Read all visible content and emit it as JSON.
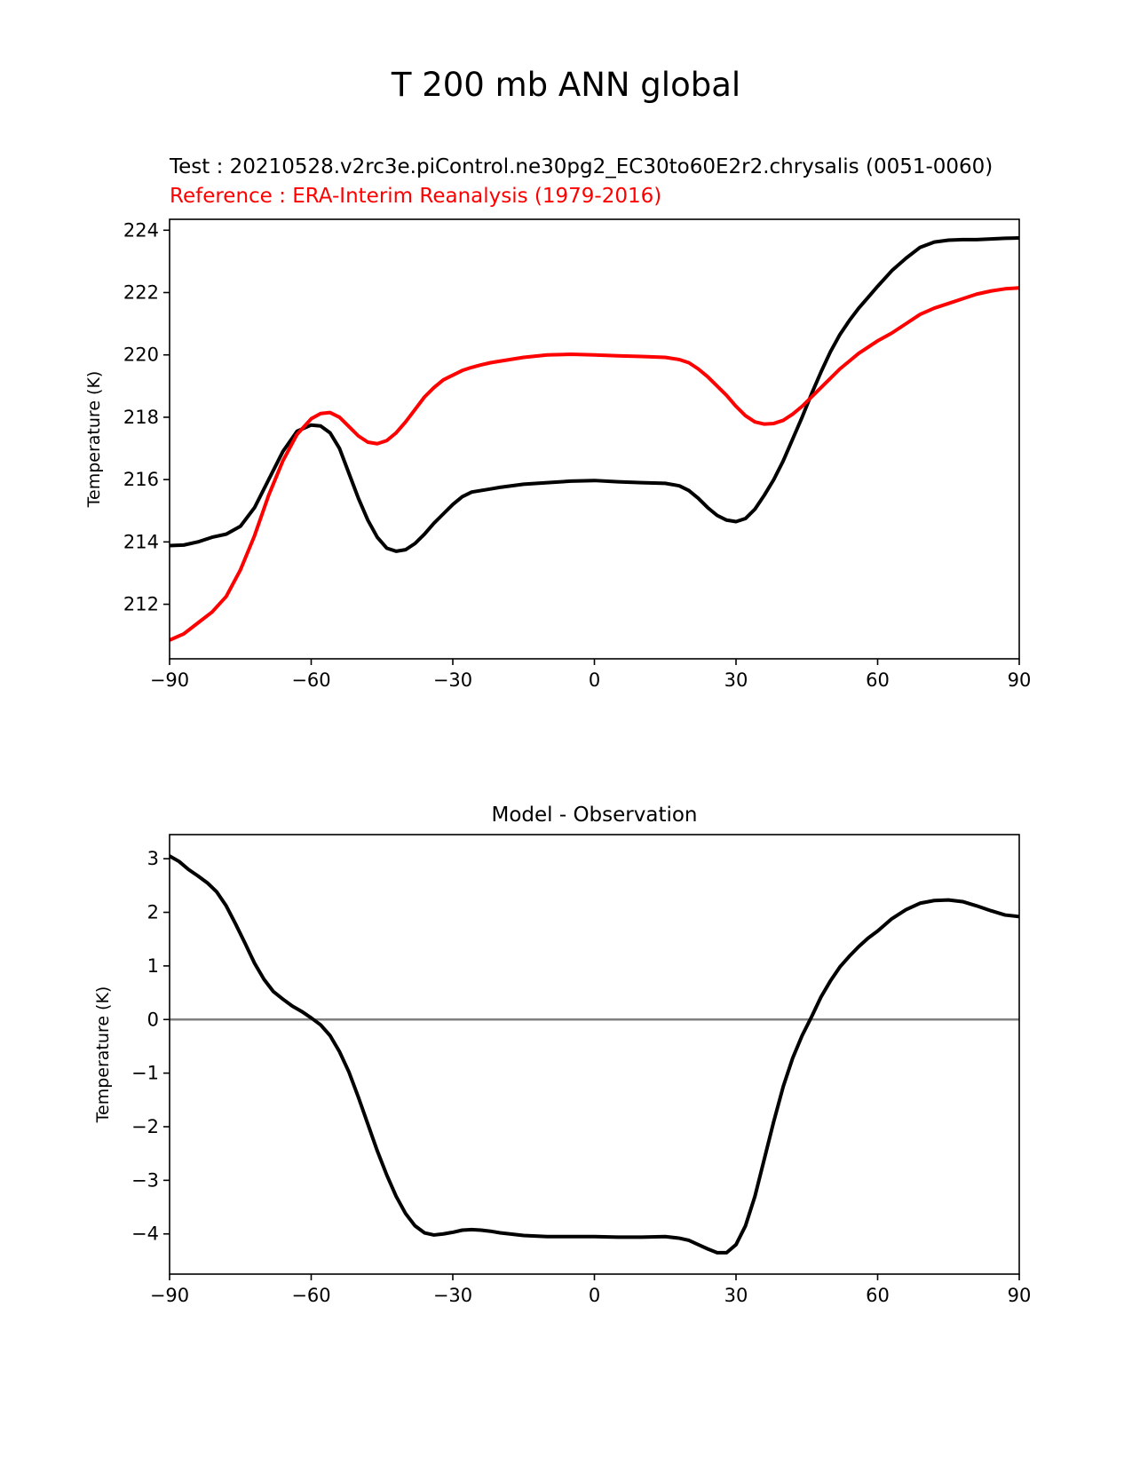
{
  "figure": {
    "suptitle": "T 200 mb ANN global",
    "test_label": "Test : 20210528.v2rc3e.piControl.ne30pg2_EC30to60E2r2.chrysalis (0051-0060)",
    "reference_label": "Reference : ERA-Interim Reanalysis (1979-2016)",
    "colors": {
      "test": "#000000",
      "reference": "#ff0000",
      "zero_line": "#808080"
    }
  },
  "chart_data": [
    {
      "type": "line",
      "title": "",
      "xlabel": "",
      "ylabel": "Temperature (K)",
      "xlim": [
        -90,
        90
      ],
      "ylim": [
        210.25,
        224.35
      ],
      "xticks": [
        -90,
        -60,
        -30,
        0,
        30,
        60,
        90
      ],
      "xtick_labels": [
        "−90",
        "−60",
        "−30",
        "0",
        "30",
        "60",
        "90"
      ],
      "yticks": [
        212,
        214,
        216,
        218,
        220,
        222,
        224
      ],
      "ytick_labels": [
        "212",
        "214",
        "216",
        "218",
        "220",
        "222",
        "224"
      ],
      "grid": false,
      "series": [
        {
          "role": "test",
          "color": "#000000",
          "x": [
            -90,
            -87,
            -84,
            -81,
            -78,
            -75,
            -72,
            -69,
            -66,
            -63,
            -60,
            -58,
            -56,
            -54,
            -52,
            -50,
            -48,
            -46,
            -44,
            -42,
            -40,
            -38,
            -36,
            -34,
            -32,
            -30,
            -28,
            -26,
            -24,
            -22,
            -20,
            -15,
            -10,
            -5,
            0,
            5,
            10,
            15,
            18,
            20,
            22,
            24,
            26,
            28,
            30,
            32,
            34,
            36,
            38,
            40,
            42,
            44,
            46,
            48,
            50,
            52,
            54,
            56,
            58,
            60,
            63,
            66,
            69,
            72,
            75,
            78,
            81,
            84,
            87,
            90
          ],
          "y": [
            213.88,
            213.9,
            214.0,
            214.15,
            214.25,
            214.5,
            215.1,
            216.0,
            216.9,
            217.55,
            217.75,
            217.72,
            217.5,
            217.0,
            216.2,
            215.4,
            214.7,
            214.15,
            213.8,
            213.7,
            213.75,
            213.95,
            214.25,
            214.6,
            214.9,
            215.2,
            215.45,
            215.6,
            215.65,
            215.7,
            215.75,
            215.85,
            215.9,
            215.95,
            215.97,
            215.93,
            215.9,
            215.88,
            215.8,
            215.65,
            215.4,
            215.1,
            214.85,
            214.7,
            214.65,
            214.75,
            215.05,
            215.5,
            216.0,
            216.6,
            217.3,
            218.0,
            218.75,
            219.45,
            220.1,
            220.65,
            221.1,
            221.5,
            221.85,
            222.2,
            222.7,
            223.1,
            223.45,
            223.62,
            223.68,
            223.7,
            223.7,
            223.72,
            223.74,
            223.75
          ]
        },
        {
          "role": "reference",
          "color": "#ff0000",
          "x": [
            -90,
            -87,
            -84,
            -81,
            -78,
            -75,
            -72,
            -69,
            -66,
            -63,
            -60,
            -58,
            -56,
            -54,
            -52,
            -50,
            -48,
            -46,
            -44,
            -42,
            -40,
            -38,
            -36,
            -34,
            -32,
            -30,
            -28,
            -26,
            -24,
            -22,
            -20,
            -15,
            -10,
            -5,
            0,
            5,
            10,
            15,
            18,
            20,
            22,
            24,
            26,
            28,
            30,
            32,
            34,
            36,
            38,
            40,
            42,
            44,
            46,
            48,
            50,
            52,
            54,
            56,
            58,
            60,
            63,
            66,
            69,
            72,
            75,
            78,
            81,
            84,
            87,
            90
          ],
          "y": [
            210.85,
            211.05,
            211.4,
            211.75,
            212.25,
            213.1,
            214.2,
            215.5,
            216.6,
            217.45,
            217.95,
            218.12,
            218.15,
            218.0,
            217.7,
            217.4,
            217.2,
            217.15,
            217.25,
            217.5,
            217.85,
            218.25,
            218.65,
            218.95,
            219.2,
            219.35,
            219.5,
            219.6,
            219.68,
            219.75,
            219.8,
            219.92,
            220.0,
            220.02,
            220.0,
            219.97,
            219.95,
            219.92,
            219.85,
            219.75,
            219.55,
            219.3,
            219.0,
            218.7,
            218.35,
            218.05,
            217.85,
            217.78,
            217.8,
            217.9,
            218.1,
            218.35,
            218.65,
            218.95,
            219.25,
            219.55,
            219.8,
            220.05,
            220.25,
            220.45,
            220.7,
            221.0,
            221.3,
            221.5,
            221.65,
            221.8,
            221.95,
            222.05,
            222.12,
            222.15
          ]
        }
      ]
    },
    {
      "type": "line",
      "title": "Model - Observation",
      "xlabel": "",
      "ylabel": "Temperature (K)",
      "xlim": [
        -90,
        90
      ],
      "ylim": [
        -4.75,
        3.45
      ],
      "xticks": [
        -90,
        -60,
        -30,
        0,
        30,
        60,
        90
      ],
      "xtick_labels": [
        "−90",
        "−60",
        "−30",
        "0",
        "30",
        "60",
        "90"
      ],
      "yticks": [
        -4,
        -3,
        -2,
        -1,
        0,
        1,
        2,
        3
      ],
      "ytick_labels": [
        "−4",
        "−3",
        "−2",
        "−1",
        "0",
        "1",
        "2",
        "3"
      ],
      "grid": false,
      "zero_line": 0,
      "series": [
        {
          "role": "difference",
          "color": "#000000",
          "x": [
            -90,
            -88,
            -86,
            -84,
            -82,
            -80,
            -78,
            -76,
            -74,
            -72,
            -70,
            -68,
            -66,
            -64,
            -62,
            -60,
            -58,
            -56,
            -54,
            -52,
            -50,
            -48,
            -46,
            -44,
            -42,
            -40,
            -38,
            -36,
            -34,
            -32,
            -30,
            -28,
            -26,
            -24,
            -22,
            -20,
            -15,
            -10,
            -5,
            0,
            5,
            10,
            15,
            18,
            20,
            22,
            24,
            26,
            28,
            30,
            32,
            34,
            36,
            38,
            40,
            42,
            44,
            46,
            48,
            50,
            52,
            54,
            56,
            58,
            60,
            63,
            66,
            69,
            72,
            75,
            78,
            81,
            84,
            87,
            90
          ],
          "y": [
            3.05,
            2.95,
            2.8,
            2.68,
            2.55,
            2.38,
            2.12,
            1.78,
            1.42,
            1.05,
            0.75,
            0.52,
            0.38,
            0.25,
            0.15,
            0.03,
            -0.1,
            -0.3,
            -0.6,
            -0.98,
            -1.45,
            -1.95,
            -2.45,
            -2.9,
            -3.3,
            -3.62,
            -3.85,
            -3.98,
            -4.02,
            -4.0,
            -3.97,
            -3.93,
            -3.92,
            -3.93,
            -3.95,
            -3.98,
            -4.03,
            -4.05,
            -4.05,
            -4.05,
            -4.06,
            -4.06,
            -4.05,
            -4.08,
            -4.12,
            -4.2,
            -4.28,
            -4.35,
            -4.35,
            -4.2,
            -3.85,
            -3.3,
            -2.6,
            -1.9,
            -1.25,
            -0.72,
            -0.3,
            0.05,
            0.42,
            0.72,
            0.98,
            1.18,
            1.36,
            1.52,
            1.65,
            1.88,
            2.05,
            2.17,
            2.22,
            2.23,
            2.2,
            2.12,
            2.03,
            1.95,
            1.92
          ]
        }
      ]
    }
  ]
}
